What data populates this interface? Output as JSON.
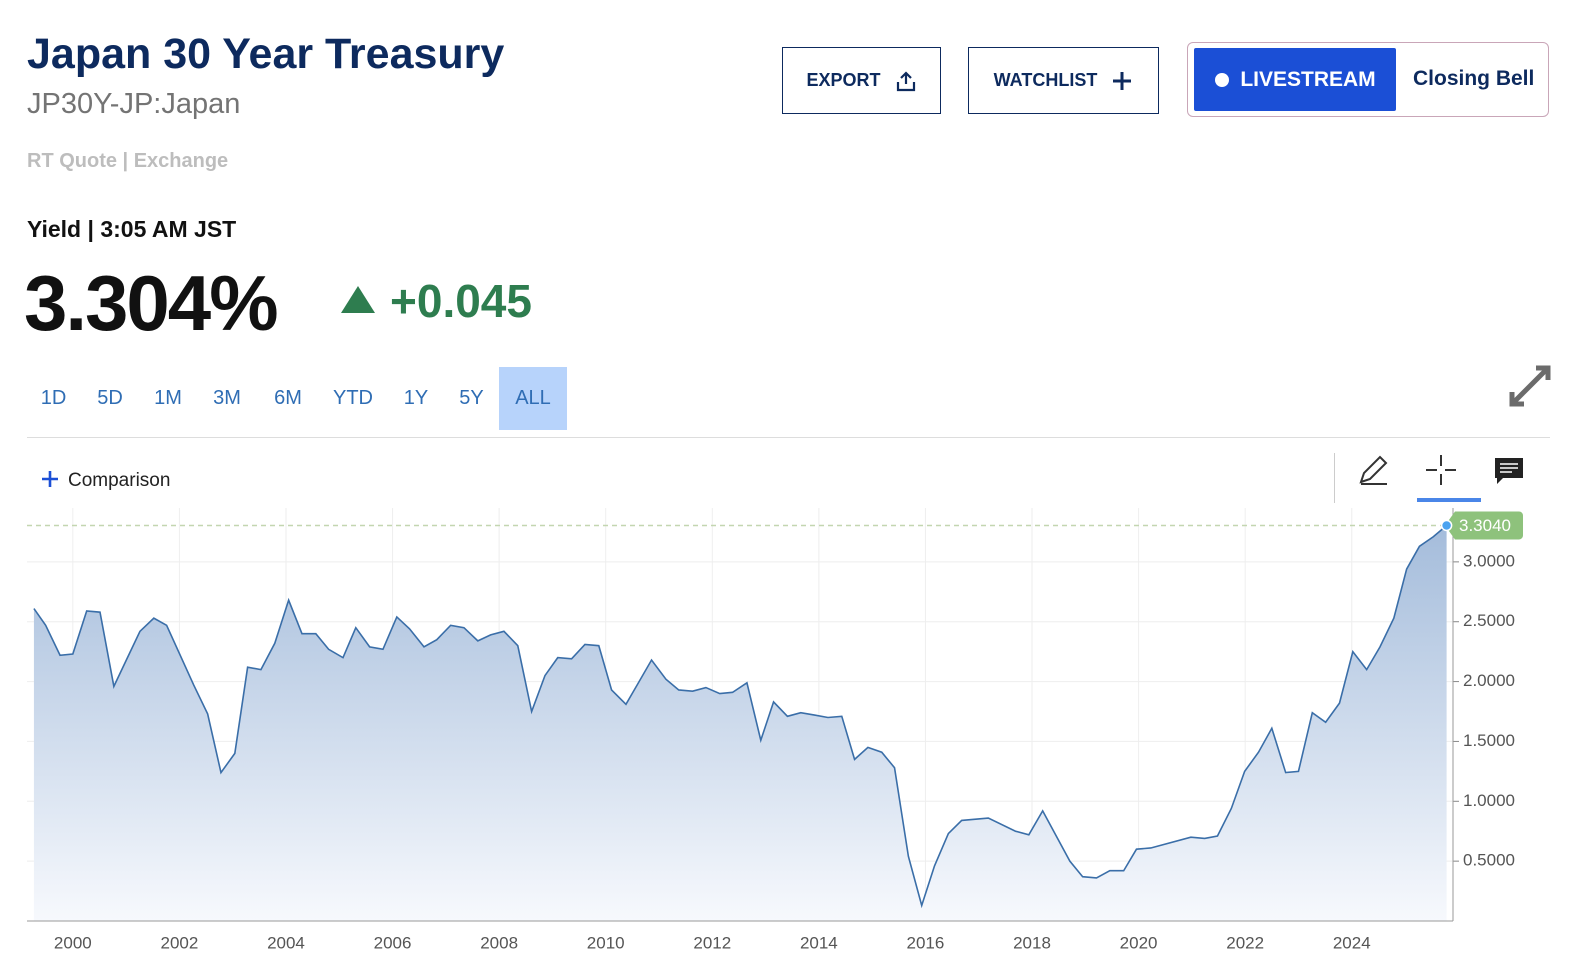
{
  "header": {
    "title": "Japan 30 Year Treasury",
    "symbol": "JP30Y-JP:Japan",
    "quote_source": "RT Quote | Exchange",
    "yield_time": "Yield | 3:05 AM JST",
    "price": "3.304%",
    "change": "+0.045"
  },
  "buttons": {
    "export": "EXPORT",
    "watchlist": "WATCHLIST",
    "livestream": "LIVESTREAM",
    "closing_bell": "Closing Bell"
  },
  "ranges": [
    "1D",
    "5D",
    "1M",
    "3M",
    "6M",
    "YTD",
    "1Y",
    "5Y",
    "ALL"
  ],
  "active_range_index": 8,
  "toolbar": {
    "comparison": "Comparison"
  },
  "chart_data": {
    "type": "area",
    "color": "#3a6ea8",
    "grid": true,
    "x": [
      1999.27,
      1999.49,
      1999.76,
      2000.0,
      2000.26,
      2000.51,
      2000.77,
      2001.26,
      2001.52,
      2001.76,
      2002.27,
      2002.53,
      2002.78,
      2003.04,
      2003.28,
      2003.53,
      2003.79,
      2004.05,
      2004.3,
      2004.56,
      2004.8,
      2005.07,
      2005.31,
      2005.57,
      2005.82,
      2006.08,
      2006.32,
      2006.59,
      2006.83,
      2007.09,
      2007.34,
      2007.6,
      2007.84,
      2008.09,
      2008.35,
      2008.61,
      2008.86,
      2009.1,
      2009.36,
      2009.61,
      2009.87,
      2010.11,
      2010.38,
      2010.86,
      2011.13,
      2011.37,
      2011.63,
      2011.88,
      2012.14,
      2012.38,
      2012.65,
      2012.91,
      2013.15,
      2013.41,
      2013.66,
      2013.92,
      2014.17,
      2014.43,
      2014.67,
      2014.92,
      2015.18,
      2015.42,
      2015.68,
      2015.93,
      2016.17,
      2016.43,
      2016.68,
      2017.18,
      2017.69,
      2017.94,
      2018.2,
      2018.71,
      2018.95,
      2019.21,
      2019.46,
      2019.72,
      2019.96,
      2020.23,
      2020.98,
      2021.24,
      2021.48,
      2021.74,
      2021.99,
      2022.25,
      2022.5,
      2022.76,
      2023.0,
      2023.26,
      2023.51,
      2023.77,
      2024.02,
      2024.28,
      2024.53,
      2024.79,
      2025.03,
      2025.27,
      2025.53,
      2025.78
    ],
    "values": [
      2.61,
      2.47,
      2.22,
      2.23,
      2.59,
      2.58,
      1.96,
      2.42,
      2.53,
      2.47,
      1.97,
      1.73,
      1.24,
      1.4,
      2.12,
      2.1,
      2.32,
      2.68,
      2.4,
      2.4,
      2.27,
      2.2,
      2.45,
      2.29,
      2.27,
      2.54,
      2.44,
      2.29,
      2.35,
      2.47,
      2.45,
      2.34,
      2.39,
      2.42,
      2.3,
      1.75,
      2.05,
      2.2,
      2.19,
      2.31,
      2.3,
      1.93,
      1.81,
      2.18,
      2.02,
      1.93,
      1.92,
      1.95,
      1.9,
      1.91,
      1.99,
      1.51,
      1.83,
      1.71,
      1.74,
      1.72,
      1.7,
      1.71,
      1.35,
      1.45,
      1.41,
      1.28,
      0.54,
      0.13,
      0.46,
      0.73,
      0.84,
      0.86,
      0.75,
      0.72,
      0.92,
      0.5,
      0.37,
      0.36,
      0.42,
      0.42,
      0.6,
      0.61,
      0.7,
      0.69,
      0.71,
      0.94,
      1.25,
      1.41,
      1.61,
      1.24,
      1.25,
      1.74,
      1.66,
      1.82,
      2.25,
      2.1,
      2.29,
      2.53,
      2.94,
      3.13,
      3.21,
      3.304
    ],
    "last_value": {
      "value": 3.304,
      "label": "3.3040"
    },
    "xlim": [
      1999.14,
      2025.9
    ],
    "xticks": [
      2000,
      2002,
      2004,
      2006,
      2008,
      2010,
      2012,
      2014,
      2016,
      2018,
      2020,
      2022,
      2024
    ],
    "ylim": [
      0,
      3.45
    ],
    "yticks": [
      {
        "value": 0.5,
        "label": "0.5000"
      },
      {
        "value": 1,
        "label": "1.0000"
      },
      {
        "value": 1.5,
        "label": "1.5000"
      },
      {
        "value": 2,
        "label": "2.0000"
      },
      {
        "value": 2.5,
        "label": "2.5000"
      },
      {
        "value": 3,
        "label": "3.0000"
      }
    ]
  }
}
